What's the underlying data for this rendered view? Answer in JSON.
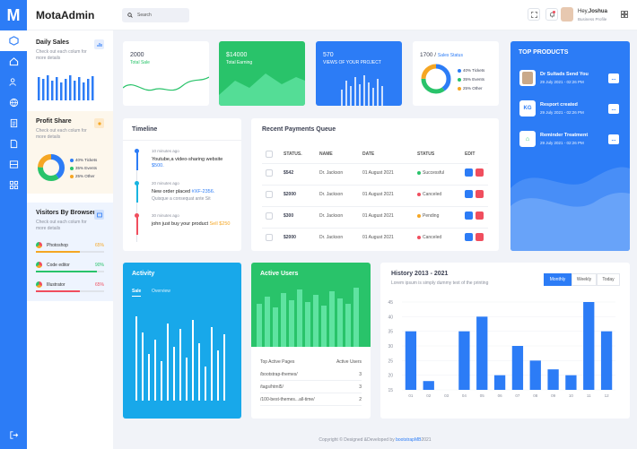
{
  "brand": {
    "logo": "M",
    "name": "MotaAdmin"
  },
  "rail": {
    "icons": [
      "cube-icon",
      "home-icon",
      "users-icon",
      "globe-icon",
      "document-icon",
      "file-icon",
      "table-icon",
      "grid-icon"
    ],
    "logout": "logout-icon"
  },
  "side": {
    "daily": {
      "title": "Daily Sales",
      "desc": "Check out each colum for more details"
    },
    "profit": {
      "title": "Profit Share",
      "desc": "Check out each colum for more details",
      "legend": [
        "40% Tickets",
        "35% Events",
        "25% Other"
      ]
    },
    "visitors": {
      "title": "Visitors By Browser",
      "desc": "Check out each colum for more details",
      "items": [
        {
          "name": "Photoshop",
          "pct": "65%",
          "color": "#f5a623",
          "level": 0.65
        },
        {
          "name": "Code editor",
          "pct": "90%",
          "color": "#29c36a",
          "level": 0.9
        },
        {
          "name": "Illustrator",
          "pct": "65%",
          "color": "#f04e5e",
          "level": 0.65
        }
      ]
    }
  },
  "header": {
    "search_placeholder": "Search",
    "greeting": "Hey,",
    "user": "Joshua",
    "role": "Business Profile"
  },
  "kpis": [
    {
      "value": "2000",
      "label": "Total Sale"
    },
    {
      "value": "$14000",
      "label": "Total Earning"
    },
    {
      "value": "570",
      "label": "VIEWS OF YOUR PROJECT"
    },
    {
      "value": "1700",
      "sep": " / ",
      "label": "Sales Status",
      "legend": [
        "40% Tickets",
        "35% Events",
        "25% Other"
      ]
    }
  ],
  "top_products": {
    "title": "TOP PRODUCTS",
    "items": [
      {
        "title": "Dr Sultads Send You",
        "date": "29 July 2021 - 02:26 PM",
        "thumb": ""
      },
      {
        "title": "Resport created",
        "date": "29 July 2021 - 02:26 PM",
        "thumb": "KG"
      },
      {
        "title": "Reminder Treatment",
        "date": "29 July 2021 - 02:26 PM",
        "thumb": ""
      }
    ],
    "more": "..."
  },
  "timeline": {
    "title": "Timeline",
    "items": [
      {
        "time": "10 minutes ago",
        "text": "Youtube,a video-sharing website",
        "hl": "$500.",
        "color": "#2c7cf6"
      },
      {
        "time": "20 minutes ago",
        "text": "New order placed",
        "hl": "#XF-2356.",
        "sub": "Quisque a consequat ante Sit",
        "color": "#18b4e0"
      },
      {
        "time": "30 minutes ago",
        "text": "john just buy your product",
        "hl": "Sell $250",
        "color": "#f04e5e"
      }
    ]
  },
  "payments": {
    "title": "Recent Payments Queue",
    "headers": [
      "STATUS.",
      "NAME",
      "DATE",
      "STATUS",
      "EDIT"
    ],
    "rows": [
      {
        "amount": "$542",
        "name": "Dr. Jackson",
        "date": "01 August 2021",
        "status": "Successful",
        "color": "#29c36a"
      },
      {
        "amount": "$2000",
        "name": "Dr. Jackson",
        "date": "01 August 2021",
        "status": "Canceled",
        "color": "#f04e5e"
      },
      {
        "amount": "$300",
        "name": "Dr. Jackson",
        "date": "01 August 2021",
        "status": "Pending",
        "color": "#f5a623"
      },
      {
        "amount": "$2000",
        "name": "Dr. Jackson",
        "date": "01 August 2021",
        "status": "Canceled",
        "color": "#f04e5e"
      }
    ]
  },
  "activity": {
    "title": "Activity",
    "tabs": [
      "Sale",
      "Overview"
    ]
  },
  "active_users": {
    "title": "Active Users",
    "col1": "Top Active Pages",
    "col2": "Active Users",
    "rows": [
      {
        "page": "/bootstrap-themes/",
        "n": "3"
      },
      {
        "page": "/tags/html5/",
        "n": "3"
      },
      {
        "page": "/100-best-themes...all-time/",
        "n": "2"
      }
    ]
  },
  "history": {
    "title": "History 2013 - 2021",
    "subtitle": "Lorem ipsum is simply dummy text of the printing",
    "tabs": [
      "Monthly",
      "Weekly",
      "Today"
    ]
  },
  "chart_data": {
    "type": "bar",
    "title": "History 2013 - 2021",
    "categories": [
      "01",
      "02",
      "03",
      "04",
      "05",
      "06",
      "07",
      "08",
      "09",
      "10",
      "11",
      "12"
    ],
    "values": [
      35,
      18,
      15,
      35,
      40,
      20,
      30,
      25,
      22,
      20,
      45,
      35
    ],
    "ylim": [
      15,
      45
    ],
    "yticks": [
      15,
      20,
      25,
      30,
      35,
      40,
      45
    ],
    "color": "#2c7cf6"
  },
  "footer": {
    "text": "Copyright © Designed &Developed by",
    "link": "bootstrapMB",
    "year": "2021"
  }
}
